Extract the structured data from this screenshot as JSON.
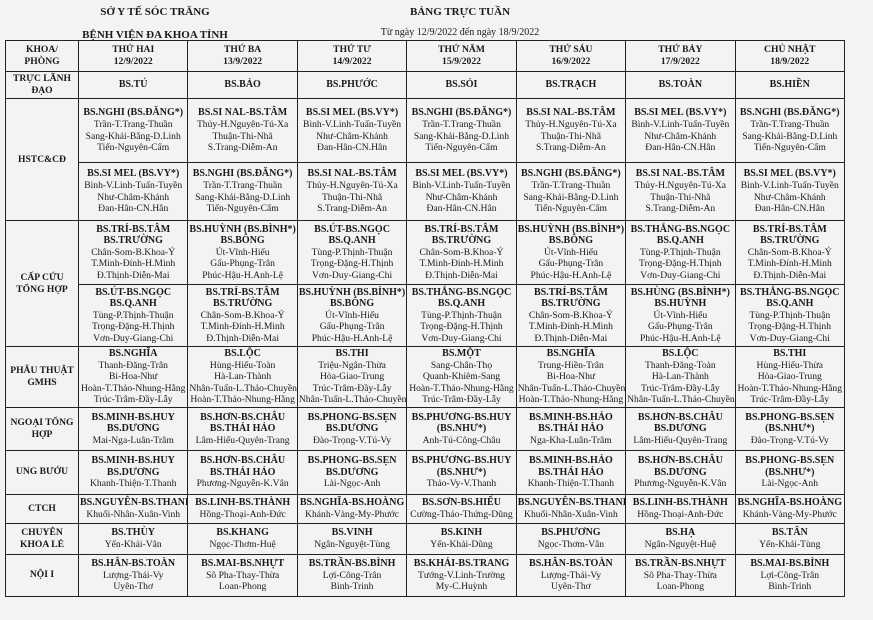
{
  "header": {
    "org": "SỞ Y TẾ SÓC TRĂNG",
    "hospital": "BỆNH VIỆN ĐA KHOA TỈNH",
    "title": "BẢNG TRỰC TUẦN",
    "subtitle": "Từ ngày 12/9/2022 đến ngày 18/9/2022"
  },
  "table": {
    "corner": [
      "KHOA/",
      "PHÒNG"
    ],
    "days": [
      {
        "name": "THỨ HAI",
        "date": "12/9/2022"
      },
      {
        "name": "THỨ BA",
        "date": "13/9/2022"
      },
      {
        "name": "THỨ TƯ",
        "date": "14/9/2022"
      },
      {
        "name": "THỨ NĂM",
        "date": "15/9/2022"
      },
      {
        "name": "THỨ SÁU",
        "date": "16/9/2022"
      },
      {
        "name": "THỨ BẢY",
        "date": "17/9/2022"
      },
      {
        "name": "CHỦ NHẬT",
        "date": "18/9/2022"
      }
    ],
    "rows": [
      {
        "label": "TRỰC LÃNH ĐẠO",
        "span": 1,
        "h": "row-lead",
        "cells": [
          {
            "b": [
              "BS.TÚ"
            ],
            "n": []
          },
          {
            "b": [
              "BS.BẢO"
            ],
            "n": []
          },
          {
            "b": [
              "BS.PHƯỚC"
            ],
            "n": []
          },
          {
            "b": [
              "BS.SỎI"
            ],
            "n": []
          },
          {
            "b": [
              "BS.TRẠCH"
            ],
            "n": []
          },
          {
            "b": [
              "BS.TOÀN"
            ],
            "n": []
          },
          {
            "b": [
              "BS.HIỀN"
            ],
            "n": []
          }
        ]
      },
      {
        "label": "HSTC&CĐ",
        "span": 2,
        "cells": [
          {
            "b": [
              "BS.NGHI (BS.ĐĂNG*)"
            ],
            "n": [
              "Trần-T.Trang-Thuần",
              "Sang-Khải-Bằng-D.Linh",
              "Tiến-Nguyên-Cẩm"
            ]
          },
          {
            "b": [
              "BS.SI NAL-BS.TÂM"
            ],
            "n": [
              "Thủy-H.Nguyên-Tú-Xa",
              "Thuận-Thi-Nhã",
              "S.Trang-Diễm-An"
            ]
          },
          {
            "b": [
              "BS.SI MEL (BS.VY*)"
            ],
            "n": [
              "Bình-V.Linh-Tuấn-Tuyền",
              "Như-Châm-Khánh",
              "Đan-Hân-CN.Hân"
            ]
          },
          {
            "b": [
              "BS.NGHI (BS.ĐĂNG*)"
            ],
            "n": [
              "Trần-T.Trang-Thuần",
              "Sang-Khải-Bằng-D.Linh",
              "Tiến-Nguyên-Cẩm"
            ]
          },
          {
            "b": [
              "BS.SI NAL-BS.TÂM"
            ],
            "n": [
              "Thủy-H.Nguyên-Tú-Xa",
              "Thuận-Thi-Nhã",
              "S.Trang-Diễm-An"
            ]
          },
          {
            "b": [
              "BS.SI MEL (BS.VY*)"
            ],
            "n": [
              "Bình-V.Linh-Tuấn-Tuyền",
              "Như-Châm-Khánh",
              "Đan-Hân-CN.Hân"
            ]
          },
          {
            "b": [
              "BS.NGHI (BS.ĐĂNG*)"
            ],
            "n": [
              "Trần-T.Trang-Thuần",
              "Sang-Khải-Bằng-D.Linh",
              "Tiến-Nguyên-Cẩm"
            ]
          }
        ]
      },
      {
        "label": "",
        "span": 0,
        "cells": [
          {
            "b": [
              "BS.SI MEL (BS.VY*)"
            ],
            "n": [
              "Bình-V.Linh-Tuấn-Tuyền",
              "Như-Châm-Khánh",
              "Đan-Hân-CN.Hân"
            ]
          },
          {
            "b": [
              "BS.NGHI (BS.ĐĂNG*)"
            ],
            "n": [
              "Trần-T.Trang-Thuần",
              "Sang-Khải-Bằng-D.Linh",
              "Tiến-Nguyên-Cẩm"
            ]
          },
          {
            "b": [
              "BS.SI NAL-BS.TÂM"
            ],
            "n": [
              "Thủy-H.Nguyên-Tú-Xa",
              "Thuận-Thi-Nhã",
              "S.Trang-Diễm-An"
            ]
          },
          {
            "b": [
              "BS.SI MEL (BS.VY*)"
            ],
            "n": [
              "Bình-V.Linh-Tuấn-Tuyền",
              "Như-Châm-Khánh",
              "Đan-Hân-CN.Hân"
            ]
          },
          {
            "b": [
              "BS.NGHI (BS.ĐĂNG*)"
            ],
            "n": [
              "Trần-T.Trang-Thuần",
              "Sang-Khải-Bằng-D.Linh",
              "Tiến-Nguyên-Cẩm"
            ]
          },
          {
            "b": [
              "BS.SI NAL-BS.TÂM"
            ],
            "n": [
              "Thủy-H.Nguyên-Tú-Xa",
              "Thuận-Thi-Nhã",
              "S.Trang-Diễm-An"
            ]
          },
          {
            "b": [
              "BS.SI MEL (BS.VY*)"
            ],
            "n": [
              "Bình-V.Linh-Tuấn-Tuyền",
              "Như-Châm-Khánh",
              "Đan-Hân-CN.Hân"
            ]
          }
        ]
      },
      {
        "label": "CẤP CỨU TỔNG HỢP",
        "span": 2,
        "cells": [
          {
            "b": [
              "BS.TRÍ-BS.TÂM",
              "BS.TRƯỜNG"
            ],
            "n": [
              "Chân-Som-B.Khoa-Ý",
              "T.Minh-Đính-H.Minh",
              "Đ.Thịnh-Diễn-Mai"
            ]
          },
          {
            "b": [
              "BS.HUỲNH (BS.BÌNH*)",
              "BS.BÔNG"
            ],
            "n": [
              "Út-Vĩnh-Hiếu",
              "Gấu-Phụng-Trân",
              "Phúc-Hậu-H.Anh-Lệ"
            ]
          },
          {
            "b": [
              "BS.ÚT-BS.NGỌC",
              "BS.Q.ANH"
            ],
            "n": [
              "Tùng-P.Thịnh-Thuận",
              "Trọng-Đặng-H.Thịnh",
              "Vơn-Duy-Giang-Chi"
            ]
          },
          {
            "b": [
              "BS.TRÍ-BS.TÂM",
              "BS.TRƯỜNG"
            ],
            "n": [
              "Chân-Som-B.Khoa-Ý",
              "T.Minh-Đính-H.Minh",
              "Đ.Thịnh-Diễn-Mai"
            ]
          },
          {
            "b": [
              "BS.HUỲNH (BS.BÌNH*)",
              "BS.BÔNG"
            ],
            "n": [
              "Út-Vĩnh-Hiếu",
              "Gấu-Phụng-Trân",
              "Phúc-Hậu-H.Anh-Lệ"
            ]
          },
          {
            "b": [
              "BS.THẮNG-BS.NGỌC",
              "BS.Q.ANH"
            ],
            "n": [
              "Tùng-P.Thịnh-Thuận",
              "Trọng-Đặng-H.Thịnh",
              "Vơn-Duy-Giang-Chi"
            ]
          },
          {
            "b": [
              "BS.TRÍ-BS.TÂM",
              "BS.TRƯỜNG"
            ],
            "n": [
              "Chân-Som-B.Khoa-Ý",
              "T.Minh-Đính-H.Minh",
              "Đ.Thịnh-Diễn-Mai"
            ]
          }
        ]
      },
      {
        "label": "",
        "span": 0,
        "cells": [
          {
            "b": [
              "BS.ÚT-BS.NGỌC",
              "BS.Q.ANH"
            ],
            "n": [
              "Tùng-P.Thịnh-Thuận",
              "Trọng-Đặng-H.Thịnh",
              "Vơn-Duy-Giang-Chi"
            ]
          },
          {
            "b": [
              "BS.TRÍ-BS.TÂM",
              "BS.TRƯỜNG"
            ],
            "n": [
              "Chân-Som-B.Khoa-Ý",
              "T.Minh-Đính-H.Minh",
              "Đ.Thịnh-Diễn-Mai"
            ]
          },
          {
            "b": [
              "BS.HUỲNH (BS.BÌNH*)",
              "BS.BÔNG"
            ],
            "n": [
              "Út-Vĩnh-Hiếu",
              "Gấu-Phụng-Trân",
              "Phúc-Hậu-H.Anh-Lệ"
            ]
          },
          {
            "b": [
              "BS.THẮNG-BS.NGỌC",
              "BS.Q.ANH"
            ],
            "n": [
              "Tùng-P.Thịnh-Thuận",
              "Trọng-Đặng-H.Thịnh",
              "Vơn-Duy-Giang-Chi"
            ]
          },
          {
            "b": [
              "BS.TRÍ-BS.TÂM",
              "BS.TRƯỜNG"
            ],
            "n": [
              "Chân-Som-B.Khoa-Ý",
              "T.Minh-Đính-H.Minh",
              "Đ.Thịnh-Diễn-Mai"
            ]
          },
          {
            "b": [
              "BS.HÙNG (BS.BÌNH*)",
              "BS.HUỲNH"
            ],
            "n": [
              "Út-Vĩnh-Hiếu",
              "Gấu-Phụng-Trân",
              "Phúc-Hậu-H.Anh-Lệ"
            ]
          },
          {
            "b": [
              "BS.THẮNG-BS.NGỌC",
              "BS.Q.ANH"
            ],
            "n": [
              "Tùng-P.Thịnh-Thuận",
              "Trọng-Đặng-H.Thịnh",
              "Vơn-Duy-Giang-Chi"
            ]
          }
        ]
      },
      {
        "label": "PHẪU THUẬT GMHS",
        "span": 1,
        "cells": [
          {
            "b": [
              "BS.NGHĨA"
            ],
            "n": [
              "Thanh-Đăng-Trân",
              "Bi-Hoa-Như",
              "Hoàn-T.Thảo-Nhung-Hằng",
              "Trúc-Trâm-Đầy-Lẫy"
            ]
          },
          {
            "b": [
              "BS.LỘC"
            ],
            "n": [
              "Hùng-Hiếu-Toàn",
              "Hà-Lan-Thành",
              "Nhân-Tuấn-L.Thảo-Chuyền",
              "Hoàn-T.Thảo-Nhung-Hằng"
            ]
          },
          {
            "b": [
              "BS.THI"
            ],
            "n": [
              "Triệu-Ngân-Thừa",
              "Hòa-Giao-Trung",
              "Trúc-Trâm-Đầy-Lẫy",
              "Nhân-Tuấn-L.Thảo-Chuyền"
            ]
          },
          {
            "b": [
              "BS.MỘT"
            ],
            "n": [
              "Sang-Chân-Thọ",
              "Quanh-Khiêm-Sang",
              "Hoàn-T.Thảo-Nhung-Hằng",
              "Trúc-Trâm-Đầy-Lẫy"
            ]
          },
          {
            "b": [
              "BS.NGHĨA"
            ],
            "n": [
              "Trung-Hiền-Trân",
              "Bi-Hoa-Như",
              "Nhân-Tuấn-L.Thảo-Chuyền",
              "Hoàn-T.Thảo-Nhung-Hằng"
            ]
          },
          {
            "b": [
              "BS.LỘC"
            ],
            "n": [
              "Thanh-Đăng-Toàn",
              "Hà-Lan-Thành",
              "Trúc-Trâm-Đầy-Lẫy",
              "Nhân-Tuấn-L.Thảo-Chuyền"
            ]
          },
          {
            "b": [
              "BS.THI"
            ],
            "n": [
              "Hùng-Hiếu-Thừa",
              "Hòa-Giao-Trung",
              "Hoàn-T.Thảo-Nhung-Hằng",
              "Trúc-Trâm-Đầy-Lẫy"
            ]
          }
        ]
      },
      {
        "label": "NGOẠI TỔNG HỢP",
        "span": 1,
        "cells": [
          {
            "b": [
              "BS.MINH-BS.HUY",
              "BS.DƯƠNG"
            ],
            "n": [
              "Mai-Nga-Luân-Trâm"
            ]
          },
          {
            "b": [
              "BS.HƠN-BS.CHÂU",
              "BS.THÁI HẢO"
            ],
            "n": [
              "Lâm-Hiếu-Quyên-Trang"
            ]
          },
          {
            "b": [
              "BS.PHONG-BS.SẸN",
              "BS.DƯƠNG"
            ],
            "n": [
              "Đào-Trọng-V.Tú-Vy"
            ]
          },
          {
            "b": [
              "BS.PHƯƠNG-BS.HUY",
              "(BS.NHƯ*)"
            ],
            "n": [
              "Anh-Tú-Công-Châu"
            ]
          },
          {
            "b": [
              "BS.MINH-BS.HẢO",
              "BS.THÁI HẢO"
            ],
            "n": [
              "Nga-Kha-Luân-Trâm"
            ]
          },
          {
            "b": [
              "BS.HƠN-BS.CHÂU",
              "BS.DƯƠNG"
            ],
            "n": [
              "Lâm-Hiếu-Quyên-Trang"
            ]
          },
          {
            "b": [
              "BS.PHONG-BS.SẸN",
              "(BS.NHƯ*)"
            ],
            "n": [
              "Đào-Trọng-V.Tú-Vy"
            ]
          }
        ]
      },
      {
        "label": "UNG BƯỚU",
        "span": 1,
        "cells": [
          {
            "b": [
              "BS.MINH-BS.HUY",
              "BS.DƯƠNG"
            ],
            "n": [
              "Khanh-Thiện-T.Thanh"
            ]
          },
          {
            "b": [
              "BS.HƠN-BS.CHÂU",
              "BS.THÁI HẢO"
            ],
            "n": [
              "Phương-Nguyễn-K.Vân"
            ]
          },
          {
            "b": [
              "BS.PHONG-BS.SẸN",
              "BS.DƯƠNG"
            ],
            "n": [
              "Lài-Ngọc-Anh"
            ]
          },
          {
            "b": [
              "BS.PHƯƠNG-BS.HUY",
              "(BS.NHƯ*)"
            ],
            "n": [
              "Thảo-Vy-V.Thanh"
            ]
          },
          {
            "b": [
              "BS.MINH-BS.HẢO",
              "BS.THÁI HẢO"
            ],
            "n": [
              "Khanh-Thiện-T.Thanh"
            ]
          },
          {
            "b": [
              "BS.HƠN-BS.CHÂU",
              "BS.DƯƠNG"
            ],
            "n": [
              "Phương-Nguyễn-K.Vân"
            ]
          },
          {
            "b": [
              "BS.PHONG-BS.SẸN",
              "(BS.NHƯ*)"
            ],
            "n": [
              "Lài-Ngọc-Anh"
            ]
          }
        ]
      },
      {
        "label": "CTCH",
        "span": 1,
        "cells": [
          {
            "b": [
              "BS.NGUYÊN-BS.THANH"
            ],
            "n": [
              "Khuối-Nhân-Xuân-Vinh"
            ]
          },
          {
            "b": [
              "BS.LINH-BS.THÀNH"
            ],
            "n": [
              "Hồng-Thoại-Anh-Đức"
            ]
          },
          {
            "b": [
              "BS.NGHĨA-BS.HOÀNG"
            ],
            "n": [
              "Khánh-Vàng-My-Phước"
            ]
          },
          {
            "b": [
              "BS.SƠN-BS.HIẾU"
            ],
            "n": [
              "Cường-Thảo-Thứng-Dũng"
            ]
          },
          {
            "b": [
              "BS.NGUYÊN-BS.THANH"
            ],
            "n": [
              "Khuối-Nhân-Xuân-Vinh"
            ]
          },
          {
            "b": [
              "BS.LINH-BS.THÀNH"
            ],
            "n": [
              "Hồng-Thoại-Anh-Đức"
            ]
          },
          {
            "b": [
              "BS.NGHĨA-BS.HOÀNG"
            ],
            "n": [
              "Khánh-Vàng-My-Phước"
            ]
          }
        ]
      },
      {
        "label": "CHUYÊN KHOA LẺ",
        "span": 1,
        "cells": [
          {
            "b": [
              "BS.THÙY"
            ],
            "n": [
              "Yến-Khải-Vân"
            ]
          },
          {
            "b": [
              "BS.KHANG"
            ],
            "n": [
              "Ngọc-Thơm-Huệ"
            ]
          },
          {
            "b": [
              "BS.VINH"
            ],
            "n": [
              "Ngân-Nguyệt-Tùng"
            ]
          },
          {
            "b": [
              "BS.KINH"
            ],
            "n": [
              "Yến-Khải-Dũng"
            ]
          },
          {
            "b": [
              "BS.PHƯƠNG"
            ],
            "n": [
              "Ngọc-Thơm-Vân"
            ]
          },
          {
            "b": [
              "BS.HẠ"
            ],
            "n": [
              "Ngân-Nguyệt-Huệ"
            ]
          },
          {
            "b": [
              "BS.TÂN"
            ],
            "n": [
              "Yến-Khải-Tùng"
            ]
          }
        ]
      },
      {
        "label": "NỘI I",
        "span": 1,
        "cells": [
          {
            "b": [
              "BS.HÂN-BS.TOÀN"
            ],
            "n": [
              "Lượng-Thái-Vy",
              "Uyên-Thơ"
            ]
          },
          {
            "b": [
              "BS.MAI-BS.NHỰT"
            ],
            "n": [
              "Sô Pha-Thay-Thừa",
              "Loan-Phong"
            ]
          },
          {
            "b": [
              "BS.TRẦN-BS.BÌNH"
            ],
            "n": [
              "Lợi-Công-Trân",
              "Bình-Trinh"
            ]
          },
          {
            "b": [
              "BS.KHẢI-BS.TRANG"
            ],
            "n": [
              "Tướng-V.Linh-Trường",
              "My-C.Huỳnh"
            ]
          },
          {
            "b": [
              "BS.HÂN-BS.TOÀN"
            ],
            "n": [
              "Lượng-Thái-Vy",
              "Uyên-Thơ"
            ]
          },
          {
            "b": [
              "BS.TRẦN-BS.NHỰT"
            ],
            "n": [
              "Sô Pha-Thay-Thừa",
              "Loan-Phong"
            ]
          },
          {
            "b": [
              "BS.MAI-BS.BÌNH"
            ],
            "n": [
              "Lợi-Công-Trân",
              "Bình-Trinh"
            ]
          }
        ]
      }
    ]
  }
}
